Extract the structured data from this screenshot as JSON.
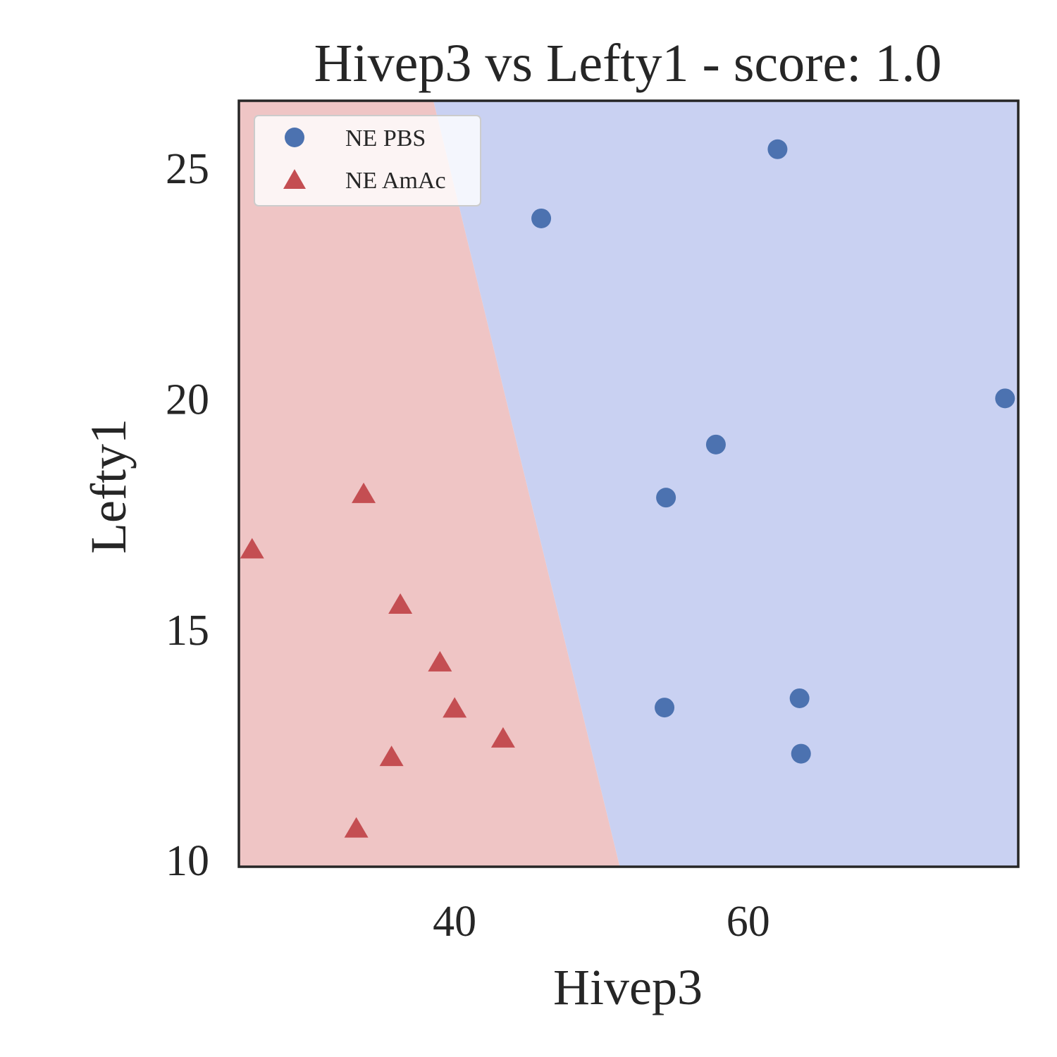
{
  "chart_data": {
    "type": "scatter",
    "title": "Hivep3 vs Lefty1 - score: 1.0",
    "xlabel": "Hivep3",
    "ylabel": "Lefty1",
    "xlim": [
      25.3,
      78.4
    ],
    "ylim": [
      9.85,
      26.45
    ],
    "xticks": [
      40,
      60
    ],
    "yticks": [
      10,
      15,
      20,
      25
    ],
    "grid": false,
    "legend_position": "upper-left",
    "decision_boundary": {
      "description": "linear classifier regions",
      "line_points": [
        [
          38.55,
          26.45
        ],
        [
          51.25,
          9.85
        ]
      ],
      "left_region": "NE AmAc",
      "right_region": "NE PBS"
    },
    "colors": {
      "pbs": "#4c72b0",
      "amac": "#c44e52",
      "pbs_region": "#c9d1f2",
      "amac_region": "#efc5c5",
      "axes": "#262626"
    },
    "series": [
      {
        "name": "NE PBS",
        "marker": "circle",
        "points": [
          [
            62.0,
            25.4
          ],
          [
            45.9,
            23.9
          ],
          [
            77.5,
            20.0
          ],
          [
            57.8,
            19.0
          ],
          [
            54.4,
            17.85
          ],
          [
            54.3,
            13.3
          ],
          [
            63.5,
            13.5
          ],
          [
            63.6,
            12.3
          ]
        ]
      },
      {
        "name": "NE AmAc",
        "marker": "triangle",
        "points": [
          [
            26.2,
            16.7
          ],
          [
            33.8,
            17.9
          ],
          [
            36.3,
            15.5
          ],
          [
            39.0,
            14.25
          ],
          [
            40.0,
            13.25
          ],
          [
            43.3,
            12.6
          ],
          [
            35.7,
            12.2
          ],
          [
            33.3,
            10.65
          ]
        ]
      }
    ]
  }
}
